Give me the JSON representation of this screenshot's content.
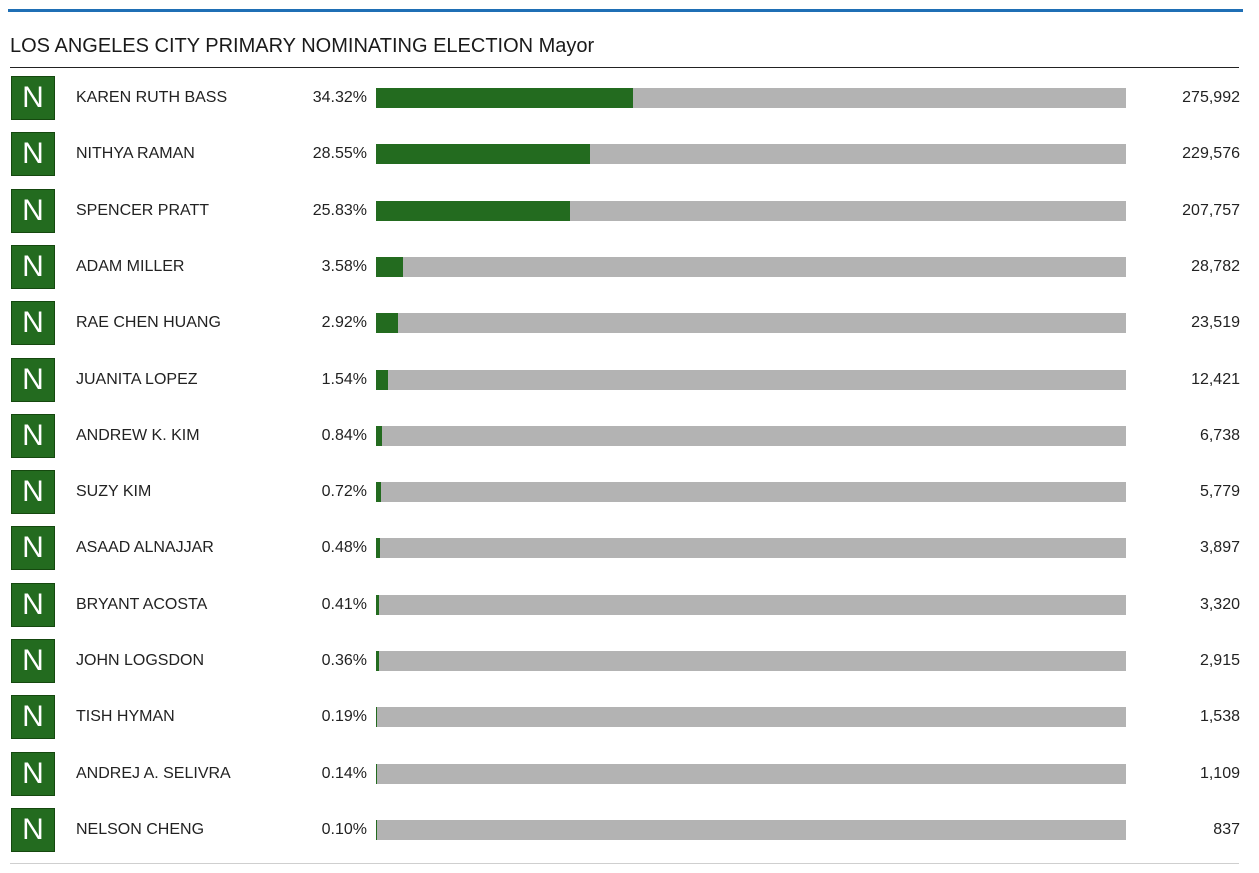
{
  "race": {
    "title": "LOS ANGELES CITY PRIMARY NOMINATING ELECTION Mayor"
  },
  "colors": {
    "accent_rule": "#1f6fb5",
    "badge_green": "#236b1f",
    "bar_fill": "#236b1f",
    "bar_track": "#b3b3b3"
  },
  "candidates": [
    {
      "badge": "N",
      "name": "KAREN RUTH BASS",
      "percent_label": "34.32%",
      "percent": 34.32,
      "votes": "275,992"
    },
    {
      "badge": "N",
      "name": "NITHYA RAMAN",
      "percent_label": "28.55%",
      "percent": 28.55,
      "votes": "229,576"
    },
    {
      "badge": "N",
      "name": "SPENCER PRATT",
      "percent_label": "25.83%",
      "percent": 25.83,
      "votes": "207,757"
    },
    {
      "badge": "N",
      "name": "ADAM MILLER",
      "percent_label": "3.58%",
      "percent": 3.58,
      "votes": "28,782"
    },
    {
      "badge": "N",
      "name": "RAE CHEN HUANG",
      "percent_label": "2.92%",
      "percent": 2.92,
      "votes": "23,519"
    },
    {
      "badge": "N",
      "name": "JUANITA LOPEZ",
      "percent_label": "1.54%",
      "percent": 1.54,
      "votes": "12,421"
    },
    {
      "badge": "N",
      "name": "ANDREW K. KIM",
      "percent_label": "0.84%",
      "percent": 0.84,
      "votes": "6,738"
    },
    {
      "badge": "N",
      "name": "SUZY KIM",
      "percent_label": "0.72%",
      "percent": 0.72,
      "votes": "5,779"
    },
    {
      "badge": "N",
      "name": "ASAAD ALNAJJAR",
      "percent_label": "0.48%",
      "percent": 0.48,
      "votes": "3,897"
    },
    {
      "badge": "N",
      "name": "BRYANT ACOSTA",
      "percent_label": "0.41%",
      "percent": 0.41,
      "votes": "3,320"
    },
    {
      "badge": "N",
      "name": "JOHN LOGSDON",
      "percent_label": "0.36%",
      "percent": 0.36,
      "votes": "2,915"
    },
    {
      "badge": "N",
      "name": "TISH HYMAN",
      "percent_label": "0.19%",
      "percent": 0.19,
      "votes": "1,538"
    },
    {
      "badge": "N",
      "name": "ANDREJ A. SELIVRA",
      "percent_label": "0.14%",
      "percent": 0.14,
      "votes": "1,109"
    },
    {
      "badge": "N",
      "name": "NELSON CHENG",
      "percent_label": "0.10%",
      "percent": 0.1,
      "votes": "837"
    }
  ]
}
